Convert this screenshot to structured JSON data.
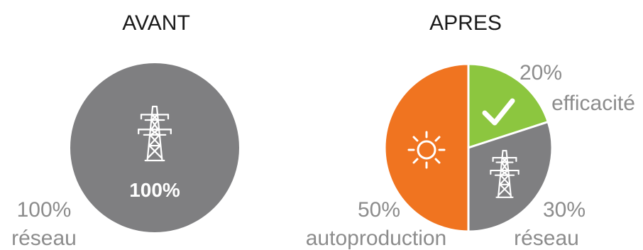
{
  "chart_data": [
    {
      "type": "pie",
      "title": "AVANT",
      "slices": [
        {
          "label": "réseau",
          "value": 100,
          "value_label": "100%",
          "color": "#7f7f81",
          "icon": "power-pylon-icon"
        }
      ],
      "inner_label": "100%"
    },
    {
      "type": "pie",
      "title": "APRES",
      "slices": [
        {
          "label": "efficacité",
          "value": 20,
          "value_label": "20%",
          "color": "#8cc63f",
          "icon": "checkmark-icon"
        },
        {
          "label": "réseau",
          "value": 30,
          "value_label": "30%",
          "color": "#7f7f81",
          "icon": "power-pylon-icon"
        },
        {
          "label": "autoproduction",
          "value": 50,
          "value_label": "50%",
          "color": "#f07420",
          "icon": "sun-icon"
        }
      ]
    }
  ]
}
